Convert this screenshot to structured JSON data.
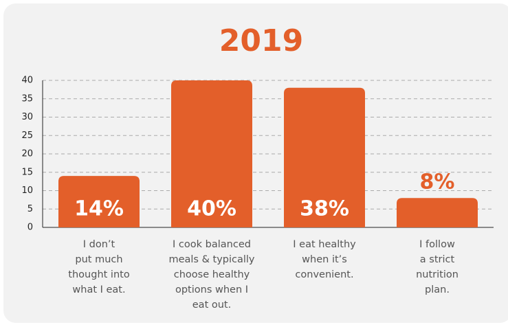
{
  "chart_data": {
    "type": "bar",
    "title": "2019",
    "categories": [
      "I don’t\nput much\nthought into\nwhat I eat.",
      "I cook balanced\nmeals & typically\nchoose healthy\noptions when I\neat out.",
      "I eat healthy\nwhen it’s\nconvenient.",
      "I follow\na strict\nnutrition\nplan."
    ],
    "values": [
      14,
      40,
      38,
      8
    ],
    "value_labels": [
      "14%",
      "40%",
      "38%",
      "8%"
    ],
    "color": "#e35f2a",
    "ylim": [
      0,
      40
    ],
    "yticks": [
      0,
      5,
      10,
      15,
      20,
      25,
      30,
      35,
      40
    ],
    "grid": true
  }
}
